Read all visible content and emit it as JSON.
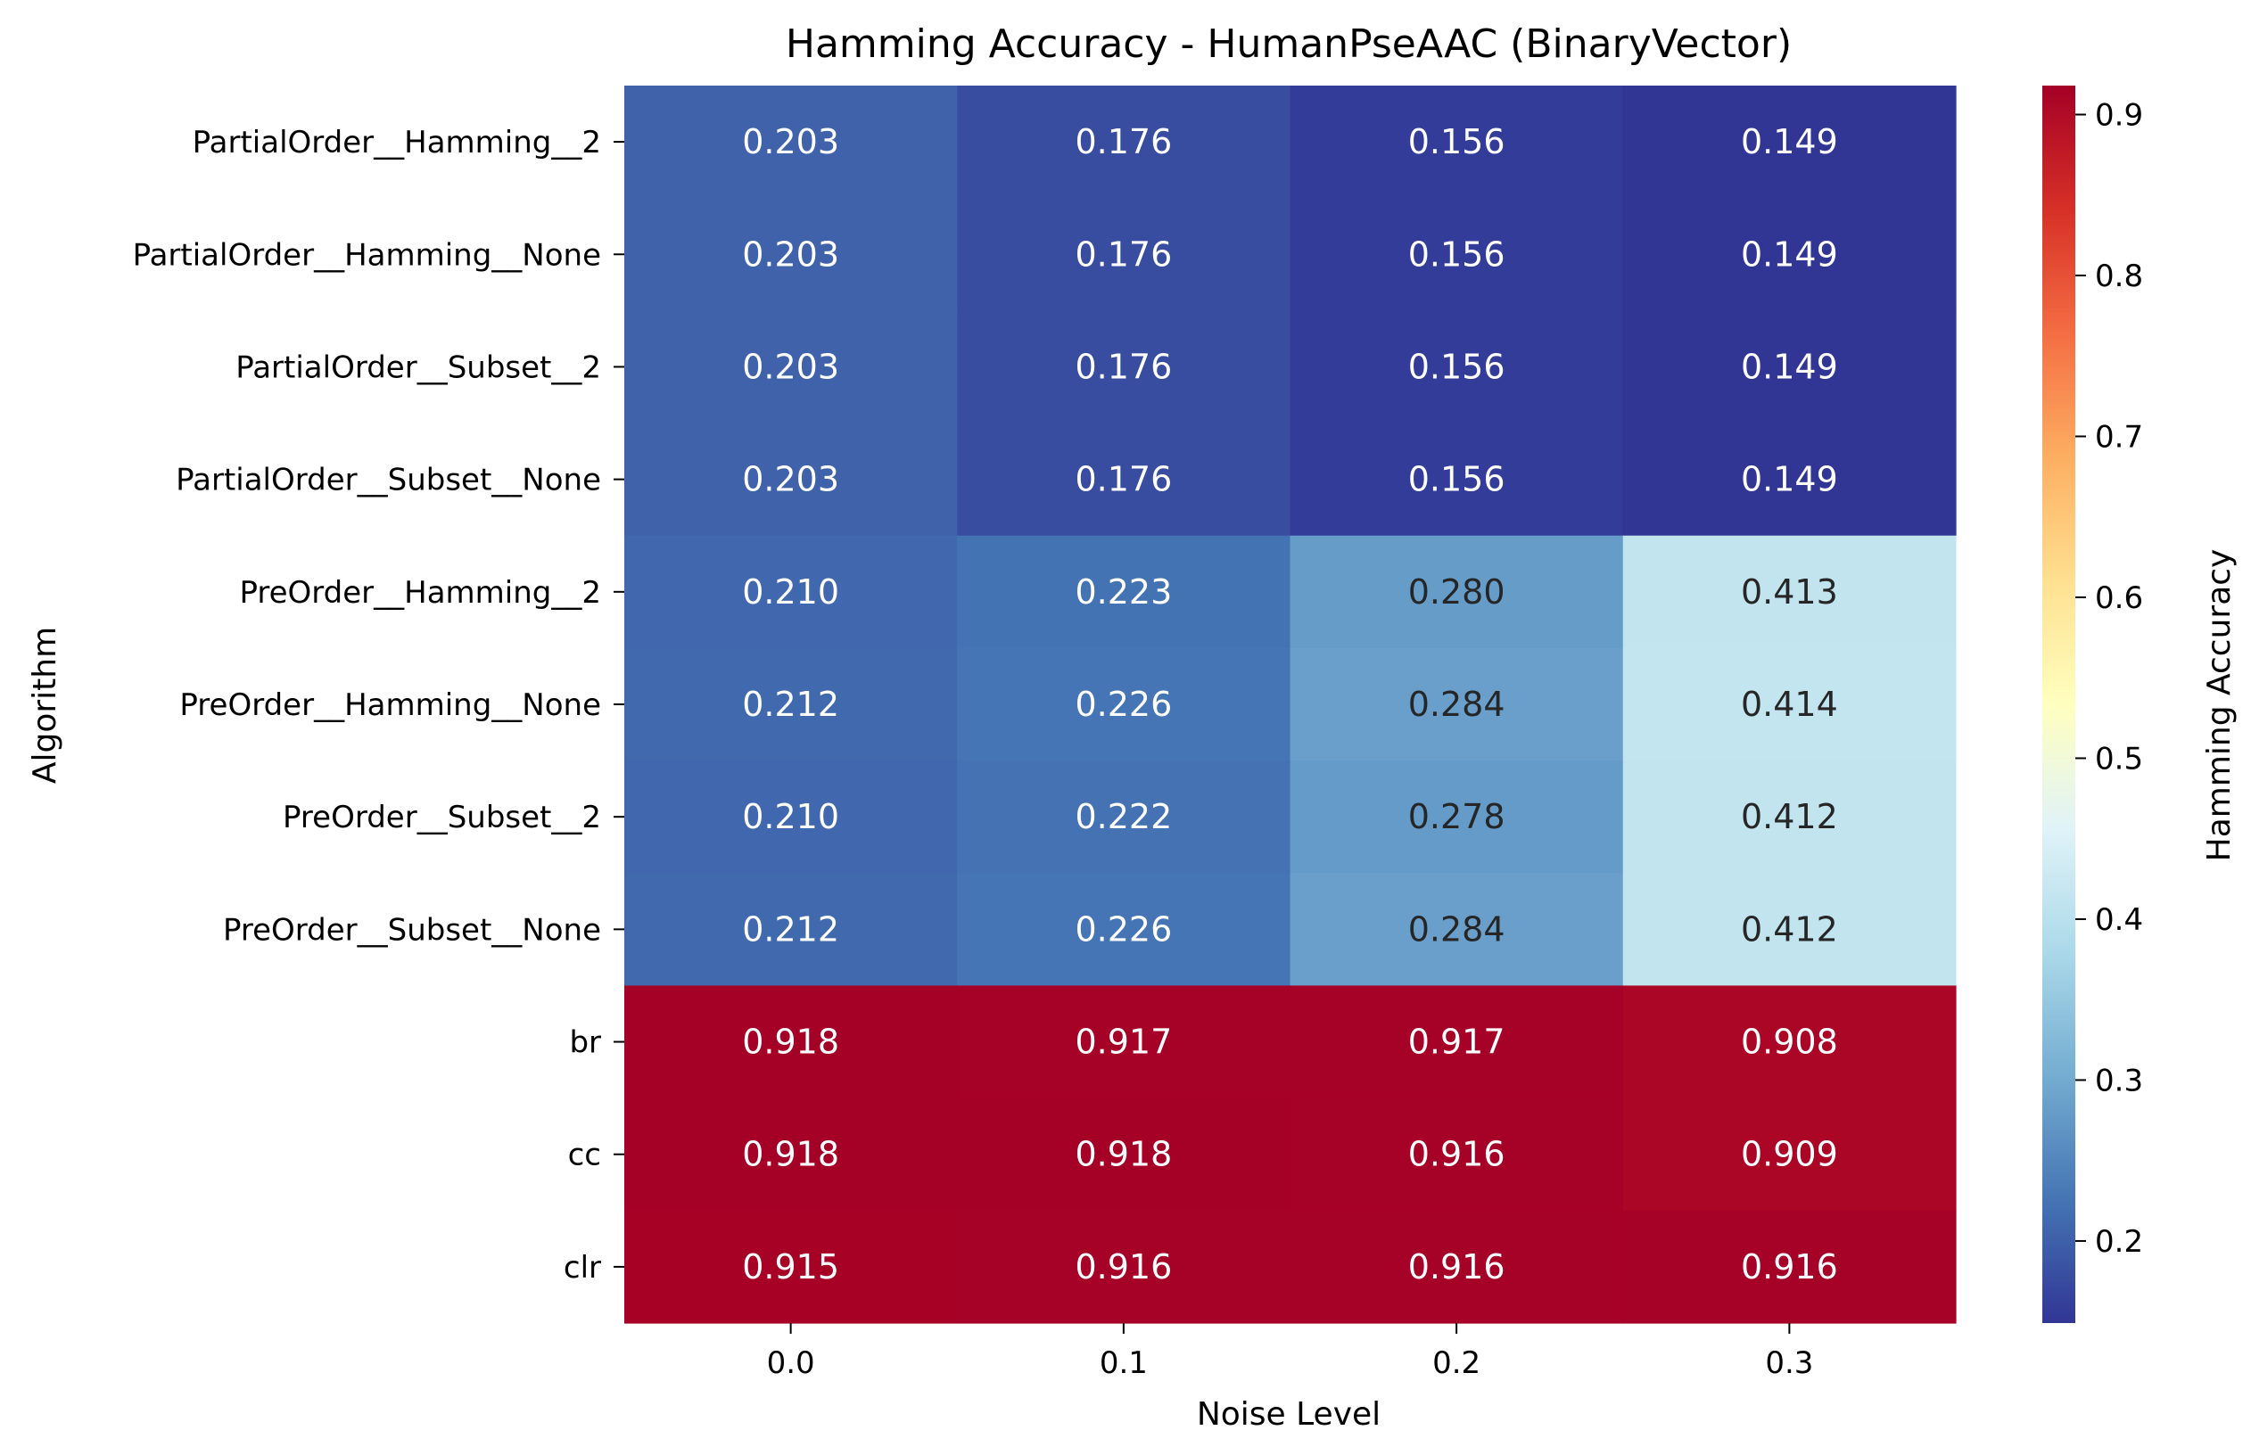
{
  "chart_data": {
    "type": "heatmap",
    "title": "Hamming Accuracy - HumanPseAAC (BinaryVector)",
    "xlabel": "Noise Level",
    "ylabel": "Algorithm",
    "x_categories": [
      "0.0",
      "0.1",
      "0.2",
      "0.3"
    ],
    "y_categories": [
      "PartialOrder__Hamming__2",
      "PartialOrder__Hamming__None",
      "PartialOrder__Subset__2",
      "PartialOrder__Subset__None",
      "PreOrder__Hamming__2",
      "PreOrder__Hamming__None",
      "PreOrder__Subset__2",
      "PreOrder__Subset__None",
      "br",
      "cc",
      "clr"
    ],
    "values": [
      [
        0.203,
        0.176,
        0.156,
        0.149
      ],
      [
        0.203,
        0.176,
        0.156,
        0.149
      ],
      [
        0.203,
        0.176,
        0.156,
        0.149
      ],
      [
        0.203,
        0.176,
        0.156,
        0.149
      ],
      [
        0.21,
        0.223,
        0.28,
        0.413
      ],
      [
        0.212,
        0.226,
        0.284,
        0.414
      ],
      [
        0.21,
        0.222,
        0.278,
        0.412
      ],
      [
        0.212,
        0.226,
        0.284,
        0.412
      ],
      [
        0.918,
        0.917,
        0.917,
        0.908
      ],
      [
        0.918,
        0.918,
        0.916,
        0.909
      ],
      [
        0.915,
        0.916,
        0.916,
        0.916
      ]
    ],
    "annotations": [
      [
        "0.203",
        "0.176",
        "0.156",
        "0.149"
      ],
      [
        "0.203",
        "0.176",
        "0.156",
        "0.149"
      ],
      [
        "0.203",
        "0.176",
        "0.156",
        "0.149"
      ],
      [
        "0.203",
        "0.176",
        "0.156",
        "0.149"
      ],
      [
        "0.210",
        "0.223",
        "0.280",
        "0.413"
      ],
      [
        "0.212",
        "0.226",
        "0.284",
        "0.414"
      ],
      [
        "0.210",
        "0.222",
        "0.278",
        "0.412"
      ],
      [
        "0.212",
        "0.226",
        "0.284",
        "0.412"
      ],
      [
        "0.918",
        "0.917",
        "0.917",
        "0.908"
      ],
      [
        "0.918",
        "0.918",
        "0.916",
        "0.909"
      ],
      [
        "0.915",
        "0.916",
        "0.916",
        "0.916"
      ]
    ],
    "colormap": "RdYlBu_r",
    "vmin": 0.149,
    "vmax": 0.918,
    "colorbar": {
      "label": "Hamming Accuracy",
      "ticks": [
        0.2,
        0.3,
        0.4,
        0.5,
        0.6,
        0.7,
        0.8,
        0.9
      ],
      "tick_labels": [
        "0.2",
        "0.3",
        "0.4",
        "0.5",
        "0.6",
        "0.7",
        "0.8",
        "0.9"
      ]
    },
    "colors": {
      "annotation_light": "#ffffff",
      "annotation_dark": "#262626",
      "axis": "#000000",
      "colormap_stops": [
        "#313695",
        "#4575b4",
        "#74add1",
        "#abd9e9",
        "#e0f3f8",
        "#ffffbf",
        "#fee090",
        "#fdae61",
        "#f46d43",
        "#d73027",
        "#a50026"
      ]
    }
  }
}
